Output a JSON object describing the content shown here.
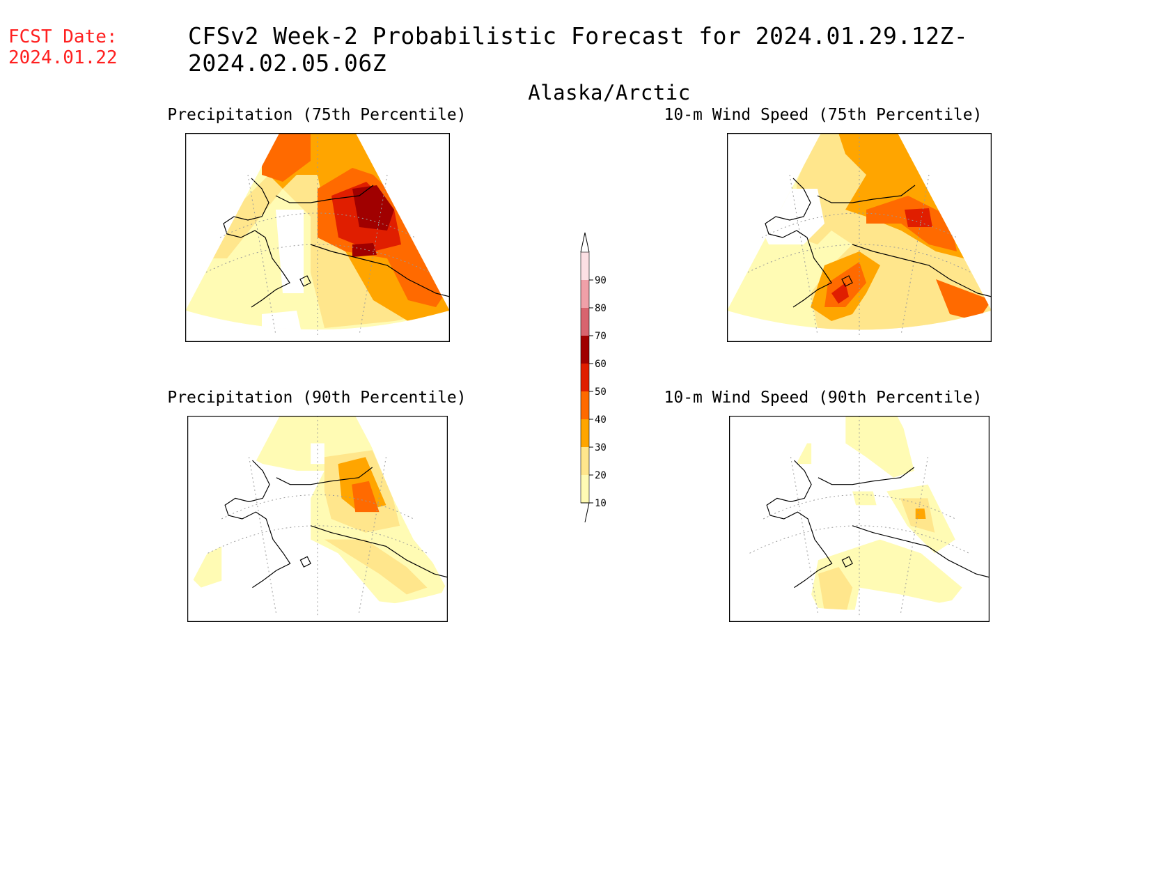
{
  "fcst_label": "FCST Date:",
  "fcst_date": "2024.01.22",
  "title": "CFSv2 Week-2 Probabilistic Forecast for 2024.01.29.12Z-2024.02.05.06Z",
  "subtitle": "Alaska/Arctic",
  "panels": [
    {
      "title": "Precipitation (75th Percentile)"
    },
    {
      "title": "10-m Wind Speed (75th Percentile)"
    },
    {
      "title": "Precipitation (90th Percentile)"
    },
    {
      "title": "10-m Wind Speed (90th Percentile)"
    }
  ],
  "colorbar": {
    "levels": [
      "10",
      "20",
      "30",
      "40",
      "50",
      "60",
      "70",
      "80",
      "90"
    ],
    "colors": [
      "#fffbb4",
      "#ffe68c",
      "#ffa500",
      "#ff6a00",
      "#e01e00",
      "#a00000",
      "#d8646e",
      "#f0a0a8",
      "#fce0e4"
    ]
  }
}
